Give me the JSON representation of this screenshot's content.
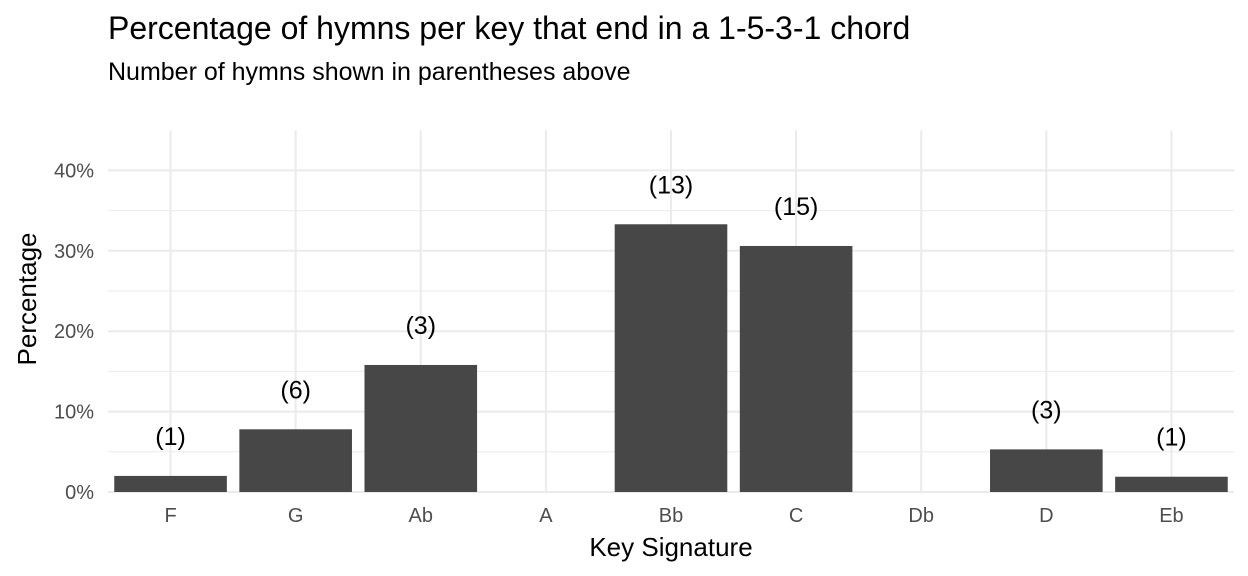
{
  "chart_data": {
    "type": "bar",
    "title": "Percentage of hymns per key that end in a 1-5-3-1 chord",
    "subtitle": "Number of hymns shown in parentheses above",
    "xlabel": "Key Signature",
    "ylabel": "Percentage",
    "categories": [
      "F",
      "G",
      "Ab",
      "A",
      "Bb",
      "C",
      "Db",
      "D",
      "Eb"
    ],
    "values": [
      2.0,
      7.8,
      15.8,
      0,
      33.3,
      30.6,
      0,
      5.3,
      1.9
    ],
    "labels": [
      "(1)",
      "(6)",
      "(3)",
      "",
      "(13)",
      "(15)",
      "",
      "(3)",
      "(1)"
    ],
    "ylim": [
      0,
      45
    ],
    "yticks": [
      0,
      10,
      20,
      30,
      40
    ],
    "ytick_labels": [
      "0%",
      "10%",
      "20%",
      "30%",
      "40%"
    ],
    "grid": true,
    "bar_color": "#474747",
    "grid_color": "#ebebeb"
  }
}
